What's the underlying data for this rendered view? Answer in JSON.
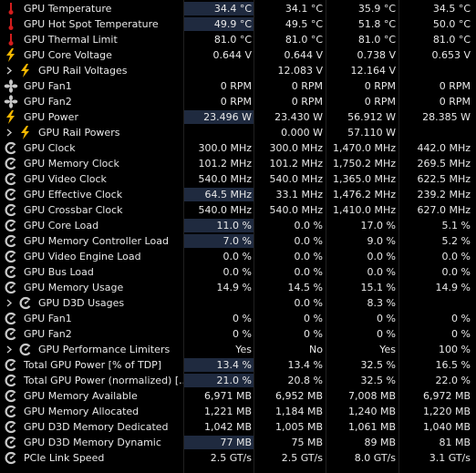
{
  "rows": [
    {
      "label": "GPU Temperature",
      "icon": "thermometer-icon",
      "sub": false,
      "v": [
        "34.4 °C",
        "34.1 °C",
        "35.9 °C",
        "34.5 °C"
      ],
      "hl": true
    },
    {
      "label": "GPU Hot Spot Temperature",
      "icon": "thermometer-icon",
      "sub": false,
      "v": [
        "49.9 °C",
        "49.5 °C",
        "51.8 °C",
        "50.0 °C"
      ],
      "hl": true
    },
    {
      "label": "GPU Thermal Limit",
      "icon": "thermometer-icon",
      "sub": false,
      "v": [
        "81.0 °C",
        "81.0 °C",
        "81.0 °C",
        "81.0 °C"
      ],
      "hl": false
    },
    {
      "label": "GPU Core Voltage",
      "icon": "lightning-icon",
      "sub": false,
      "v": [
        "0.644 V",
        "0.644 V",
        "0.738 V",
        "0.653 V"
      ],
      "hl": false
    },
    {
      "label": "GPU Rail Voltages",
      "icon": "lightning-icon",
      "sub": true,
      "v": [
        "",
        "12.083 V",
        "12.164 V",
        ""
      ],
      "hl": false
    },
    {
      "label": "GPU Fan1",
      "icon": "fan-icon",
      "sub": false,
      "v": [
        "0 RPM",
        "0 RPM",
        "0 RPM",
        "0 RPM"
      ],
      "hl": false
    },
    {
      "label": "GPU Fan2",
      "icon": "fan-icon",
      "sub": false,
      "v": [
        "0 RPM",
        "0 RPM",
        "0 RPM",
        "0 RPM"
      ],
      "hl": false
    },
    {
      "label": "GPU Power",
      "icon": "lightning-icon",
      "sub": false,
      "v": [
        "23.496 W",
        "23.430 W",
        "56.912 W",
        "28.385 W"
      ],
      "hl": true
    },
    {
      "label": "GPU Rail Powers",
      "icon": "lightning-icon",
      "sub": true,
      "v": [
        "",
        "0.000 W",
        "57.110 W",
        ""
      ],
      "hl": false
    },
    {
      "label": "GPU Clock",
      "icon": "clock-gauge-icon",
      "sub": false,
      "v": [
        "300.0 MHz",
        "300.0 MHz",
        "1,470.0 MHz",
        "442.0 MHz"
      ],
      "hl": false
    },
    {
      "label": "GPU Memory Clock",
      "icon": "clock-gauge-icon",
      "sub": false,
      "v": [
        "101.2 MHz",
        "101.2 MHz",
        "1,750.2 MHz",
        "269.5 MHz"
      ],
      "hl": false
    },
    {
      "label": "GPU Video Clock",
      "icon": "clock-gauge-icon",
      "sub": false,
      "v": [
        "540.0 MHz",
        "540.0 MHz",
        "1,365.0 MHz",
        "622.5 MHz"
      ],
      "hl": false
    },
    {
      "label": "GPU Effective Clock",
      "icon": "clock-gauge-icon",
      "sub": false,
      "v": [
        "64.5 MHz",
        "33.1 MHz",
        "1,476.2 MHz",
        "239.2 MHz"
      ],
      "hl": true
    },
    {
      "label": "GPU Crossbar Clock",
      "icon": "clock-gauge-icon",
      "sub": false,
      "v": [
        "540.0 MHz",
        "540.0 MHz",
        "1,410.0 MHz",
        "627.0 MHz"
      ],
      "hl": false
    },
    {
      "label": "GPU Core Load",
      "icon": "clock-gauge-icon",
      "sub": false,
      "v": [
        "11.0 %",
        "0.0 %",
        "17.0 %",
        "5.1 %"
      ],
      "hl": true
    },
    {
      "label": "GPU Memory Controller Load",
      "icon": "clock-gauge-icon",
      "sub": false,
      "v": [
        "7.0 %",
        "0.0 %",
        "9.0 %",
        "5.2 %"
      ],
      "hl": true
    },
    {
      "label": "GPU Video Engine Load",
      "icon": "clock-gauge-icon",
      "sub": false,
      "v": [
        "0.0 %",
        "0.0 %",
        "0.0 %",
        "0.0 %"
      ],
      "hl": false
    },
    {
      "label": "GPU Bus Load",
      "icon": "clock-gauge-icon",
      "sub": false,
      "v": [
        "0.0 %",
        "0.0 %",
        "0.0 %",
        "0.0 %"
      ],
      "hl": false
    },
    {
      "label": "GPU Memory Usage",
      "icon": "clock-gauge-icon",
      "sub": false,
      "v": [
        "14.9 %",
        "14.5 %",
        "15.1 %",
        "14.9 %"
      ],
      "hl": false
    },
    {
      "label": "GPU D3D Usages",
      "icon": "clock-gauge-icon",
      "sub": true,
      "v": [
        "",
        "0.0 %",
        "8.3 %",
        ""
      ],
      "hl": false
    },
    {
      "label": "GPU Fan1",
      "icon": "clock-gauge-icon",
      "sub": false,
      "v": [
        "0 %",
        "0 %",
        "0 %",
        "0 %"
      ],
      "hl": false
    },
    {
      "label": "GPU Fan2",
      "icon": "clock-gauge-icon",
      "sub": false,
      "v": [
        "0 %",
        "0 %",
        "0 %",
        "0 %"
      ],
      "hl": false
    },
    {
      "label": "GPU Performance Limiters",
      "icon": "clock-gauge-icon",
      "sub": true,
      "v": [
        "Yes",
        "No",
        "Yes",
        "100 %"
      ],
      "hl": false
    },
    {
      "label": "Total GPU Power [% of TDP]",
      "icon": "clock-gauge-icon",
      "sub": false,
      "v": [
        "13.4 %",
        "13.4 %",
        "32.5 %",
        "16.5 %"
      ],
      "hl": true
    },
    {
      "label": "Total GPU Power (normalized) [...",
      "icon": "clock-gauge-icon",
      "sub": false,
      "v": [
        "21.0 %",
        "20.8 %",
        "32.5 %",
        "22.0 %"
      ],
      "hl": true
    },
    {
      "label": "GPU Memory Available",
      "icon": "clock-gauge-icon",
      "sub": false,
      "v": [
        "6,971 MB",
        "6,952 MB",
        "7,008 MB",
        "6,972 MB"
      ],
      "hl": false
    },
    {
      "label": "GPU Memory Allocated",
      "icon": "clock-gauge-icon",
      "sub": false,
      "v": [
        "1,221 MB",
        "1,184 MB",
        "1,240 MB",
        "1,220 MB"
      ],
      "hl": false
    },
    {
      "label": "GPU D3D Memory Dedicated",
      "icon": "clock-gauge-icon",
      "sub": false,
      "v": [
        "1,042 MB",
        "1,005 MB",
        "1,061 MB",
        "1,040 MB"
      ],
      "hl": false
    },
    {
      "label": "GPU D3D Memory Dynamic",
      "icon": "clock-gauge-icon",
      "sub": false,
      "v": [
        "77 MB",
        "75 MB",
        "89 MB",
        "81 MB"
      ],
      "hl": true
    },
    {
      "label": "PCIe Link Speed",
      "icon": "clock-gauge-icon",
      "sub": false,
      "v": [
        "2.5 GT/s",
        "2.5 GT/s",
        "8.0 GT/s",
        "3.1 GT/s"
      ],
      "hl": false
    }
  ],
  "colors": {
    "background": "#000000",
    "highlight": "#1f2a3f",
    "thermometer": "#d21d1d",
    "lightning": "#f2b600",
    "icon_gray": "#c8c8c8"
  }
}
